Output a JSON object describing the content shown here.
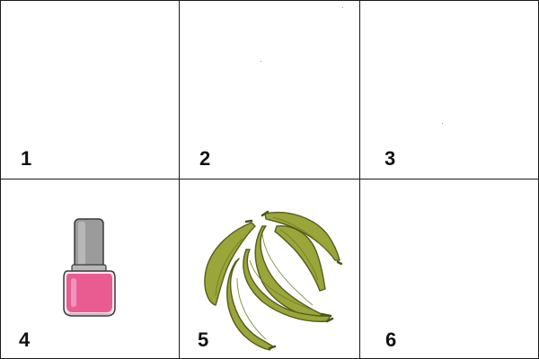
{
  "cells": [
    {
      "label": "1",
      "content": ""
    },
    {
      "label": "2",
      "content": ""
    },
    {
      "label": "3",
      "content": ""
    },
    {
      "label": "4",
      "content": "nail-polish-bottle"
    },
    {
      "label": "5",
      "content": "green-bananas"
    },
    {
      "label": "6",
      "content": ""
    }
  ],
  "colors": {
    "grid_line": "#1a1a1a",
    "polish_pink": "#e85c92",
    "polish_cap": "#9b9b9b",
    "banana_green": "#9aa53a",
    "banana_outline": "#555d1c"
  }
}
